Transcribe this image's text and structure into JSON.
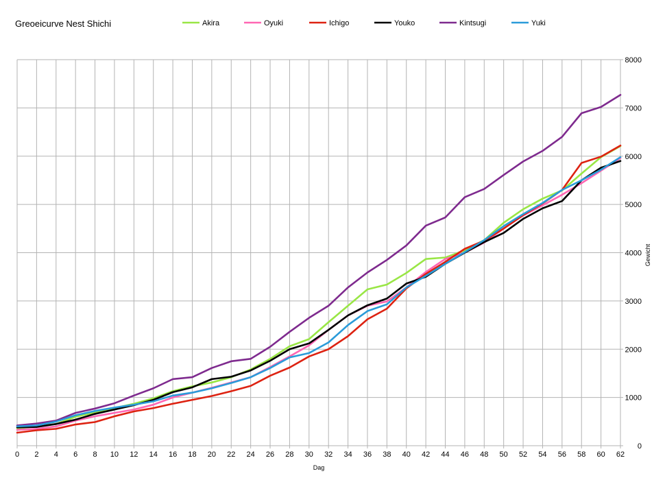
{
  "chart_data": {
    "type": "line",
    "title": "Greoeicurve Nest Shichi",
    "xlabel": "Dag",
    "ylabel": "Gewicht",
    "xlim": [
      0,
      62
    ],
    "ylim": [
      0,
      8000
    ],
    "x_ticks": [
      0,
      2,
      4,
      6,
      8,
      10,
      12,
      14,
      16,
      18,
      20,
      22,
      24,
      26,
      28,
      30,
      32,
      34,
      36,
      38,
      40,
      42,
      44,
      46,
      48,
      50,
      52,
      54,
      56,
      58,
      60,
      62
    ],
    "y_ticks": [
      0,
      1000,
      2000,
      3000,
      4000,
      5000,
      6000,
      7000,
      8000
    ],
    "grid": true,
    "legend_position": "top",
    "x": [
      0,
      2,
      4,
      6,
      8,
      10,
      12,
      14,
      16,
      18,
      20,
      22,
      24,
      26,
      28,
      30,
      32,
      34,
      36,
      38,
      40,
      42,
      44,
      46,
      48,
      50,
      52,
      54,
      56,
      58,
      60,
      62
    ],
    "series": [
      {
        "name": "Akira",
        "color": "#99e645",
        "values": [
          360,
          400,
          450,
          600,
          690,
          780,
          870,
          980,
          1130,
          1230,
          1310,
          1420,
          1580,
          1800,
          2060,
          2210,
          2560,
          2900,
          3240,
          3340,
          3580,
          3870,
          3900,
          4050,
          4260,
          4620,
          4900,
          5120,
          5290,
          5640,
          5980,
          6210
        ]
      },
      {
        "name": "Oyuki",
        "color": "#ff66b3",
        "values": [
          330,
          350,
          400,
          520,
          610,
          680,
          750,
          850,
          1000,
          1100,
          1200,
          1310,
          1420,
          1630,
          1850,
          2080,
          2400,
          2700,
          2900,
          2990,
          3280,
          3600,
          3870,
          4000,
          4210,
          4500,
          4770,
          4980,
          5200,
          5440,
          5700,
          5960
        ]
      },
      {
        "name": "Ichigo",
        "color": "#dd2211",
        "values": [
          270,
          320,
          350,
          440,
          490,
          610,
          710,
          780,
          870,
          950,
          1030,
          1130,
          1240,
          1450,
          1620,
          1850,
          2000,
          2270,
          2620,
          2840,
          3260,
          3560,
          3810,
          4080,
          4250,
          4500,
          4780,
          5020,
          5300,
          5860,
          5990,
          6220
        ]
      },
      {
        "name": "Youko",
        "color": "#000000",
        "values": [
          380,
          390,
          450,
          540,
          660,
          750,
          840,
          950,
          1110,
          1210,
          1380,
          1430,
          1560,
          1760,
          2000,
          2120,
          2400,
          2700,
          2910,
          3050,
          3360,
          3500,
          3770,
          4000,
          4220,
          4410,
          4700,
          4920,
          5070,
          5500,
          5760,
          5900
        ]
      },
      {
        "name": "Kintsugi",
        "color": "#7e2a8e",
        "values": [
          420,
          460,
          520,
          680,
          770,
          880,
          1040,
          1190,
          1380,
          1420,
          1610,
          1750,
          1800,
          2050,
          2360,
          2650,
          2900,
          3280,
          3590,
          3850,
          4150,
          4560,
          4730,
          5150,
          5320,
          5610,
          5890,
          6110,
          6400,
          6890,
          7020,
          7270
        ]
      },
      {
        "name": "Yuki",
        "color": "#2a9bd9",
        "values": [
          400,
          420,
          500,
          630,
          720,
          790,
          850,
          920,
          1040,
          1100,
          1190,
          1300,
          1420,
          1610,
          1830,
          1920,
          2140,
          2500,
          2790,
          2930,
          3280,
          3520,
          3770,
          4010,
          4260,
          4550,
          4800,
          5030,
          5300,
          5500,
          5720,
          5980
        ]
      }
    ]
  }
}
